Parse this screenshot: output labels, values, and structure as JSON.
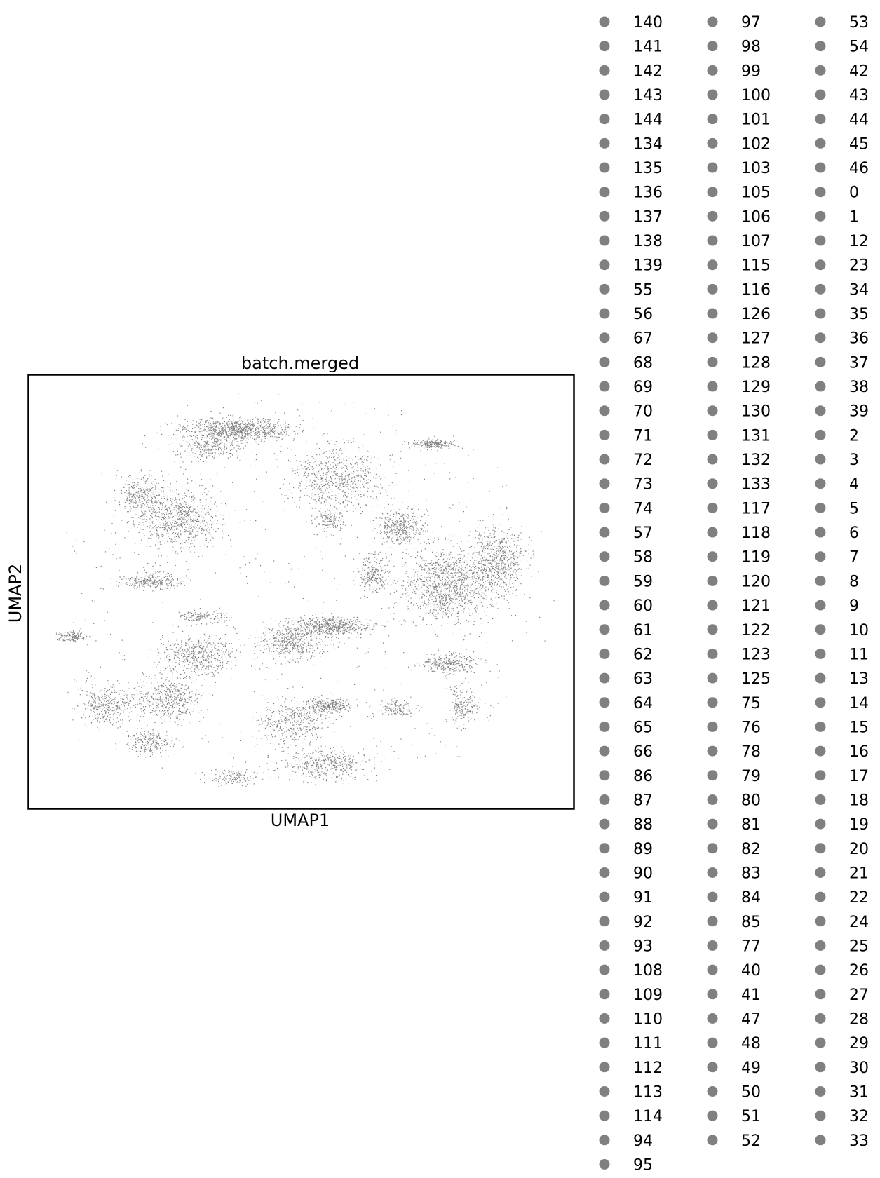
{
  "chart_data": {
    "type": "scatter",
    "title": "batch.merged",
    "xlabel": "UMAP1",
    "ylabel": "UMAP2",
    "grid": false,
    "ticks": false,
    "point_color": "#808080",
    "legend": {
      "placement": "right, outside plot",
      "marker_color": "#808080",
      "columns": [
        [
          "140",
          "141",
          "142",
          "143",
          "144",
          "134",
          "135",
          "136",
          "137",
          "138",
          "139",
          "55",
          "56",
          "67",
          "68",
          "69",
          "70",
          "71",
          "72",
          "73",
          "74",
          "57",
          "58",
          "59",
          "60",
          "61",
          "62",
          "63",
          "64",
          "65",
          "66",
          "86",
          "87",
          "88",
          "89",
          "90",
          "91",
          "92",
          "93",
          "108",
          "109",
          "110",
          "111",
          "112",
          "113",
          "114",
          "94",
          "95"
        ],
        [
          "97",
          "98",
          "99",
          "100",
          "101",
          "102",
          "103",
          "105",
          "106",
          "107",
          "115",
          "116",
          "126",
          "127",
          "128",
          "129",
          "130",
          "131",
          "132",
          "133",
          "117",
          "118",
          "119",
          "120",
          "121",
          "122",
          "123",
          "125",
          "75",
          "76",
          "78",
          "79",
          "80",
          "81",
          "82",
          "83",
          "84",
          "85",
          "77",
          "40",
          "41",
          "47",
          "48",
          "49",
          "50",
          "51",
          "52"
        ],
        [
          "53",
          "54",
          "42",
          "43",
          "44",
          "45",
          "46",
          "0",
          "1",
          "12",
          "23",
          "34",
          "35",
          "36",
          "37",
          "38",
          "39",
          "2",
          "3",
          "4",
          "5",
          "6",
          "7",
          "8",
          "9",
          "10",
          "11",
          "13",
          "14",
          "15",
          "16",
          "17",
          "18",
          "19",
          "20",
          "21",
          "22",
          "24",
          "25",
          "26",
          "27",
          "28",
          "29",
          "30",
          "31",
          "32",
          "33"
        ]
      ]
    }
  }
}
